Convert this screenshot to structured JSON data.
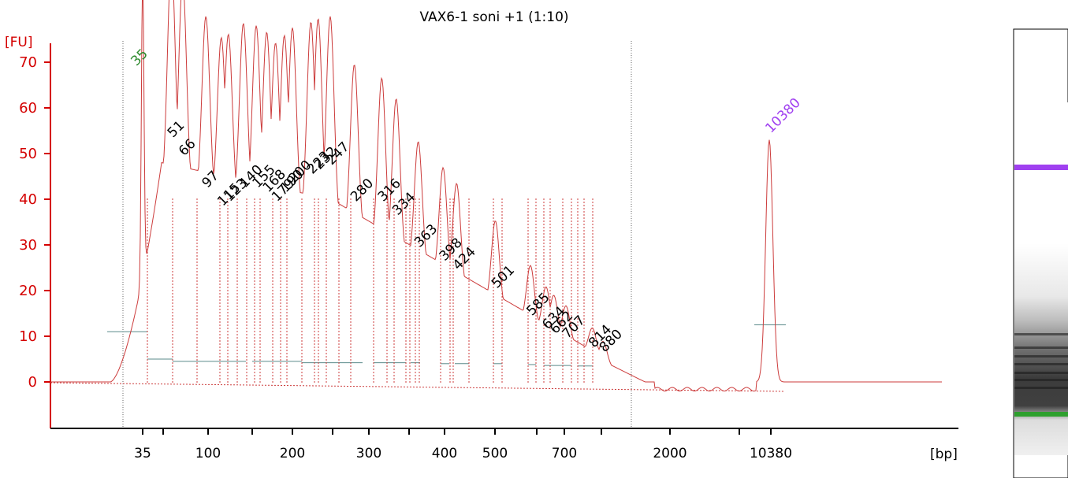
{
  "chart_data": {
    "type": "line",
    "title": "VAX6-1 soni +1  (1:10)",
    "ylabel": "[FU]",
    "xlabel": "[bp]",
    "ylim": [
      -5,
      72
    ],
    "y_ticks": [
      "0",
      "10",
      "20",
      "30",
      "40",
      "50",
      "60",
      "70"
    ],
    "x_ticks": [
      "35",
      "100",
      "200",
      "300",
      "400",
      "500",
      "700",
      "2000",
      "10380"
    ],
    "lower_marker": {
      "size": "35",
      "color": "#2e8b2e"
    },
    "upper_marker": {
      "size": "10380",
      "color": "#a040f0"
    },
    "colors": {
      "trace": "#cc3b3b",
      "axis": "#d40000",
      "baseline": "#5a8a8a"
    },
    "peaks": [
      {
        "label": "51",
        "fu": 52
      },
      {
        "label": "66",
        "fu": 48
      },
      {
        "label": "97",
        "fu": 41
      },
      {
        "label": "115",
        "fu": 37
      },
      {
        "label": "123",
        "fu": 38
      },
      {
        "label": "140",
        "fu": 41
      },
      {
        "label": "155",
        "fu": 41
      },
      {
        "label": "168",
        "fu": 40
      },
      {
        "label": "179",
        "fu": 38
      },
      {
        "label": "190",
        "fu": 40
      },
      {
        "label": "200",
        "fu": 42
      },
      {
        "label": "223",
        "fu": 44
      },
      {
        "label": "232",
        "fu": 45
      },
      {
        "label": "247",
        "fu": 46
      },
      {
        "label": "280",
        "fu": 38
      },
      {
        "label": "316",
        "fu": 38
      },
      {
        "label": "334",
        "fu": 35
      },
      {
        "label": "363",
        "fu": 28
      },
      {
        "label": "398",
        "fu": 25
      },
      {
        "label": "424",
        "fu": 23
      },
      {
        "label": "501",
        "fu": 19
      },
      {
        "label": "585",
        "fu": 13
      },
      {
        "label": "634",
        "fu": 10
      },
      {
        "label": "662",
        "fu": 9
      },
      {
        "label": "707",
        "fu": 8
      },
      {
        "label": "814",
        "fu": 6
      },
      {
        "label": "880",
        "fu": 5
      }
    ],
    "marker_peaks": [
      {
        "label": "35",
        "fu": 67
      },
      {
        "label": "10380",
        "fu": 53
      }
    ],
    "grid": false
  }
}
